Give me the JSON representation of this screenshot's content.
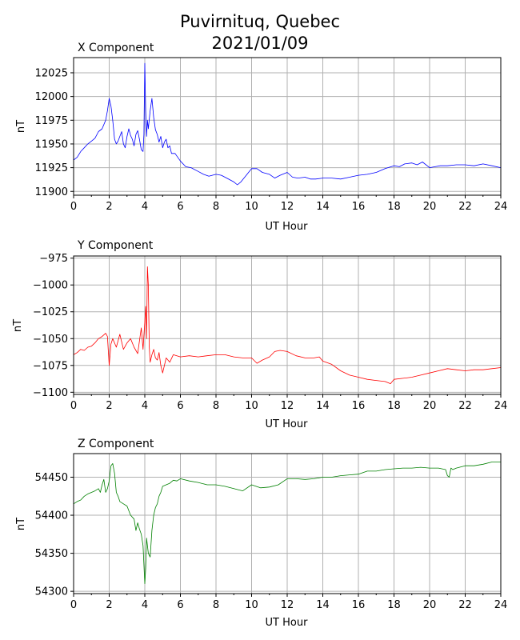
{
  "figure": {
    "title_line1": "Puvirnituq, Quebec",
    "title_line2": "2021/01/09"
  },
  "chart_data": [
    {
      "type": "line",
      "title": "X Component",
      "xlabel": "UT Hour",
      "ylabel": "nT",
      "xlim": [
        0,
        24
      ],
      "ylim": [
        11896,
        12041
      ],
      "xticks": [
        0,
        2,
        4,
        6,
        8,
        10,
        12,
        14,
        16,
        18,
        20,
        22,
        24
      ],
      "yticks": [
        11900,
        11925,
        11950,
        11975,
        12000,
        12025
      ],
      "grid": true,
      "color": "#0000ff",
      "series": [
        {
          "x": [
            0.0,
            0.2,
            0.4,
            0.6,
            0.8,
            1.0,
            1.2,
            1.4,
            1.6,
            1.8,
            1.9,
            2.0,
            2.1,
            2.2,
            2.3,
            2.4,
            2.5,
            2.6,
            2.7,
            2.8,
            2.9,
            3.0,
            3.1,
            3.2,
            3.3,
            3.4,
            3.5,
            3.6,
            3.7,
            3.8,
            3.9,
            3.95,
            4.0,
            4.05,
            4.1,
            4.15,
            4.2,
            4.3,
            4.4,
            4.5,
            4.6,
            4.7,
            4.8,
            4.9,
            5.0,
            5.1,
            5.2,
            5.3,
            5.4,
            5.5,
            5.7,
            6.0,
            6.3,
            6.6,
            7.0,
            7.3,
            7.6,
            8.0,
            8.3,
            8.6,
            9.0,
            9.2,
            9.4,
            9.7,
            10.0,
            10.3,
            10.6,
            11.0,
            11.3,
            11.6,
            12.0,
            12.3,
            12.6,
            13.0,
            13.3,
            13.6,
            14.0,
            14.5,
            15.0,
            15.5,
            16.0,
            16.5,
            17.0,
            17.5,
            18.0,
            18.3,
            18.6,
            19.0,
            19.3,
            19.6,
            20.0,
            20.3,
            20.6,
            21.0,
            21.5,
            22.0,
            22.5,
            23.0,
            23.5,
            24.0
          ],
          "y": [
            11933,
            11936,
            11942,
            11946,
            11950,
            11953,
            11956,
            11963,
            11966,
            11975,
            11985,
            11998,
            11990,
            11975,
            11955,
            11950,
            11953,
            11958,
            11963,
            11950,
            11946,
            11958,
            11966,
            11959,
            11955,
            11948,
            11960,
            11964,
            11955,
            11944,
            11942,
            11960,
            12035,
            11985,
            11958,
            11975,
            11966,
            11985,
            11998,
            11978,
            11965,
            11960,
            11952,
            11958,
            11946,
            11952,
            11955,
            11946,
            11948,
            11940,
            11940,
            11932,
            11926,
            11925,
            11921,
            11918,
            11916,
            11918,
            11917,
            11914,
            11910,
            11907,
            11910,
            11917,
            11924,
            11924,
            11920,
            11918,
            11914,
            11917,
            11920,
            11915,
            11914,
            11915,
            11913,
            11913,
            11914,
            11914,
            11913,
            11915,
            11917,
            11918,
            11920,
            11924,
            11927,
            11926,
            11929,
            11930,
            11928,
            11931,
            11925,
            11926,
            11927,
            11927,
            11928,
            11928,
            11927,
            11929,
            11927,
            11925
          ]
        }
      ]
    },
    {
      "type": "line",
      "title": "Y Component",
      "xlabel": "UT Hour",
      "ylabel": "nT",
      "xlim": [
        0,
        24
      ],
      "ylim": [
        -1102,
        -973
      ],
      "xticks": [
        0,
        2,
        4,
        6,
        8,
        10,
        12,
        14,
        16,
        18,
        20,
        22,
        24
      ],
      "yticks": [
        -975,
        -1000,
        -1025,
        -1050,
        -1075,
        -1100
      ],
      "grid": true,
      "color": "#ff0000",
      "series": [
        {
          "x": [
            0.0,
            0.2,
            0.4,
            0.6,
            0.8,
            1.0,
            1.2,
            1.4,
            1.6,
            1.8,
            1.9,
            2.0,
            2.1,
            2.2,
            2.4,
            2.6,
            2.8,
            3.0,
            3.2,
            3.4,
            3.6,
            3.8,
            3.9,
            4.0,
            4.05,
            4.1,
            4.15,
            4.2,
            4.25,
            4.3,
            4.4,
            4.5,
            4.6,
            4.7,
            4.8,
            4.9,
            5.0,
            5.2,
            5.4,
            5.6,
            6.0,
            6.5,
            7.0,
            7.5,
            8.0,
            8.5,
            9.0,
            9.5,
            10.0,
            10.3,
            10.6,
            11.0,
            11.3,
            11.6,
            12.0,
            12.5,
            13.0,
            13.5,
            13.8,
            14.0,
            14.5,
            15.0,
            15.5,
            16.0,
            16.5,
            17.0,
            17.5,
            17.8,
            18.0,
            18.5,
            19.0,
            19.5,
            20.0,
            20.5,
            21.0,
            21.5,
            22.0,
            22.5,
            23.0,
            23.5,
            24.0
          ],
          "y": [
            -1065,
            -1063,
            -1060,
            -1061,
            -1058,
            -1057,
            -1054,
            -1050,
            -1048,
            -1045,
            -1048,
            -1075,
            -1055,
            -1050,
            -1058,
            -1046,
            -1060,
            -1054,
            -1050,
            -1058,
            -1064,
            -1040,
            -1060,
            -1034,
            -1020,
            -1050,
            -983,
            -1000,
            -1058,
            -1072,
            -1065,
            -1060,
            -1068,
            -1070,
            -1063,
            -1075,
            -1082,
            -1068,
            -1072,
            -1065,
            -1067,
            -1066,
            -1067,
            -1066,
            -1065,
            -1065,
            -1067,
            -1068,
            -1068,
            -1073,
            -1070,
            -1067,
            -1062,
            -1061,
            -1062,
            -1066,
            -1068,
            -1068,
            -1067,
            -1071,
            -1074,
            -1080,
            -1084,
            -1086,
            -1088,
            -1089,
            -1090,
            -1092,
            -1088,
            -1087,
            -1086,
            -1084,
            -1082,
            -1080,
            -1078,
            -1079,
            -1080,
            -1079,
            -1079,
            -1078,
            -1077
          ]
        }
      ]
    },
    {
      "type": "line",
      "title": "Z Component",
      "xlabel": "UT Hour",
      "ylabel": "nT",
      "xlim": [
        0,
        24
      ],
      "ylim": [
        54297,
        54481
      ],
      "xticks": [
        0,
        2,
        4,
        6,
        8,
        10,
        12,
        14,
        16,
        18,
        20,
        22,
        24
      ],
      "yticks": [
        54300,
        54350,
        54400,
        54450
      ],
      "grid": true,
      "color": "#008000",
      "series": [
        {
          "x": [
            0.0,
            0.2,
            0.4,
            0.6,
            0.8,
            1.0,
            1.2,
            1.4,
            1.5,
            1.6,
            1.7,
            1.8,
            1.9,
            2.0,
            2.1,
            2.2,
            2.3,
            2.4,
            2.5,
            2.6,
            2.8,
            3.0,
            3.2,
            3.4,
            3.5,
            3.6,
            3.7,
            3.8,
            3.9,
            4.0,
            4.05,
            4.1,
            4.2,
            4.3,
            4.4,
            4.5,
            4.6,
            4.7,
            4.8,
            4.9,
            5.0,
            5.2,
            5.4,
            5.6,
            5.8,
            6.0,
            6.5,
            7.0,
            7.5,
            8.0,
            8.5,
            9.0,
            9.5,
            10.0,
            10.5,
            11.0,
            11.5,
            12.0,
            12.5,
            13.0,
            13.5,
            14.0,
            14.5,
            15.0,
            15.5,
            16.0,
            16.5,
            17.0,
            17.5,
            18.0,
            18.5,
            19.0,
            19.5,
            20.0,
            20.5,
            20.9,
            21.0,
            21.1,
            21.2,
            21.3,
            21.5,
            22.0,
            22.5,
            23.0,
            23.5,
            24.0
          ],
          "y": [
            54415,
            54418,
            54420,
            54425,
            54428,
            54430,
            54432,
            54435,
            54430,
            54440,
            54447,
            54430,
            54435,
            54445,
            54465,
            54468,
            54455,
            54430,
            54425,
            54418,
            54415,
            54412,
            54400,
            54395,
            54380,
            54390,
            54382,
            54375,
            54360,
            54310,
            54330,
            54370,
            54350,
            54345,
            54380,
            54400,
            54410,
            54415,
            54425,
            54430,
            54438,
            54440,
            54442,
            54446,
            54445,
            54448,
            54445,
            54443,
            54440,
            54440,
            54438,
            54435,
            54432,
            54440,
            54436,
            54437,
            54440,
            54448,
            54448,
            54447,
            54448,
            54450,
            54450,
            54452,
            54453,
            54454,
            54458,
            54458,
            54460,
            54461,
            54462,
            54462,
            54463,
            54462,
            54462,
            54460,
            54452,
            54450,
            54462,
            54460,
            54462,
            54465,
            54465,
            54467,
            54470,
            54470
          ]
        }
      ]
    }
  ]
}
